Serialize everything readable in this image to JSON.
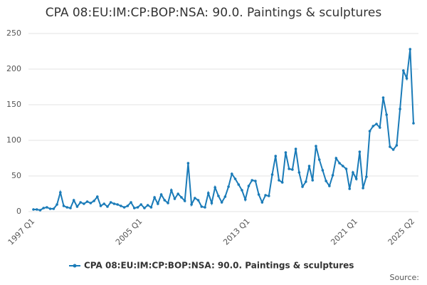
{
  "chart_data": {
    "type": "line",
    "title": "CPA 08:EU:IM:CP:BOP:NSA: 90.0. Paintings & sculptures",
    "categories": [
      "1997 Q1",
      null,
      null,
      null,
      null,
      null,
      null,
      null,
      null,
      null,
      null,
      null,
      null,
      null,
      null,
      null,
      null,
      null,
      null,
      null,
      null,
      null,
      null,
      null,
      null,
      null,
      null,
      null,
      null,
      null,
      null,
      null,
      "2005 Q1",
      null,
      null,
      null,
      null,
      null,
      null,
      null,
      null,
      null,
      null,
      null,
      null,
      null,
      null,
      null,
      null,
      null,
      null,
      null,
      null,
      null,
      null,
      null,
      null,
      null,
      null,
      null,
      null,
      null,
      null,
      null,
      "2013 Q1",
      null,
      null,
      null,
      null,
      null,
      null,
      null,
      null,
      null,
      null,
      null,
      null,
      null,
      null,
      null,
      null,
      null,
      null,
      null,
      null,
      null,
      null,
      null,
      null,
      null,
      null,
      null,
      null,
      null,
      null,
      null,
      "2021 Q1",
      null,
      null,
      null,
      null,
      null,
      null,
      null,
      null,
      null,
      null,
      null,
      null,
      null,
      null,
      null,
      null,
      "2025 Q2"
    ],
    "series": [
      {
        "name": "CPA 08:EU:IM:CP:BOP:NSA: 90.0. Paintings & sculptures",
        "color": "#1a7bb8",
        "values": [
          3,
          3,
          2,
          5,
          6,
          4,
          4,
          10,
          27,
          8,
          6,
          5,
          16,
          7,
          13,
          11,
          14,
          12,
          15,
          21,
          8,
          11,
          7,
          13,
          11,
          10,
          8,
          6,
          8,
          13,
          5,
          6,
          10,
          5,
          9,
          6,
          20,
          11,
          24,
          16,
          12,
          30,
          18,
          25,
          20,
          15,
          68,
          10,
          19,
          16,
          7,
          6,
          26,
          12,
          34,
          22,
          13,
          21,
          35,
          53,
          46,
          38,
          30,
          17,
          36,
          44,
          43,
          24,
          13,
          23,
          22,
          52,
          78,
          44,
          41,
          83,
          60,
          59,
          88,
          55,
          35,
          42,
          64,
          44,
          92,
          73,
          58,
          43,
          36,
          51,
          75,
          68,
          64,
          60,
          32,
          55,
          46,
          84,
          33,
          49,
          113,
          120,
          123,
          118,
          160,
          136,
          91,
          87,
          93,
          144,
          198,
          187,
          228,
          124
        ]
      }
    ],
    "ylim": [
      0,
      250
    ],
    "yticks": [
      0,
      50,
      100,
      150,
      200,
      250
    ],
    "grid": true,
    "legend": "bottom",
    "source_label": "Source:"
  }
}
